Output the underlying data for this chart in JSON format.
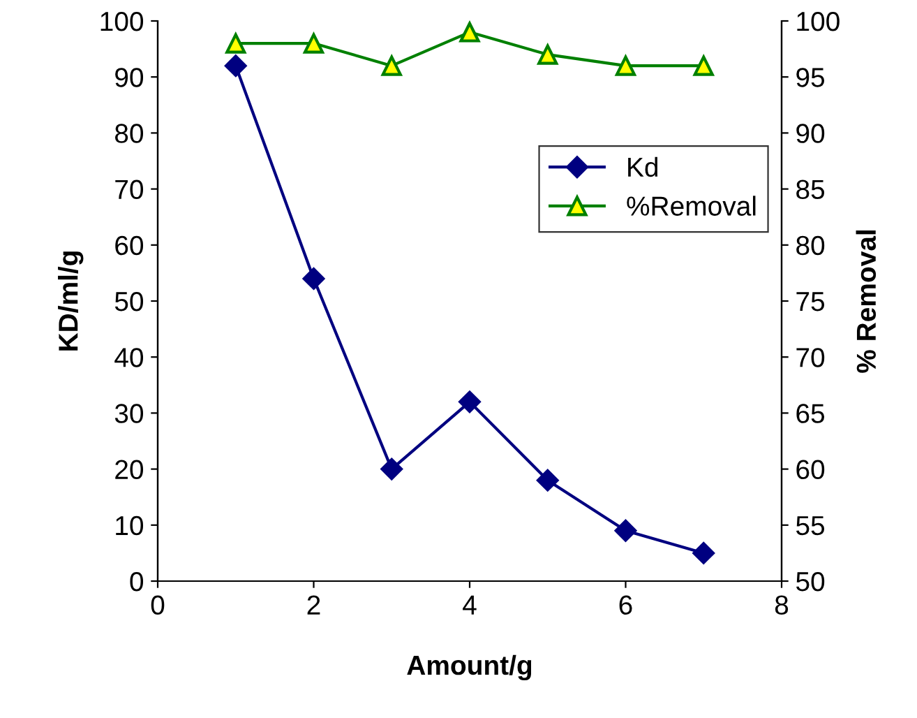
{
  "chart_data": {
    "type": "line",
    "xlabel": "Amount/g",
    "ylabel": "KD/ml/g",
    "y2label": "% Removal",
    "x": [
      1,
      2,
      3,
      4,
      5,
      6,
      7
    ],
    "series": [
      {
        "name": "Kd",
        "color": "#000080",
        "values": [
          92,
          54,
          20,
          32,
          18,
          9,
          5
        ],
        "marker": "diamond"
      },
      {
        "name": "%Removal",
        "color": "#008000",
        "values": [
          98,
          98,
          96,
          99,
          97,
          96,
          96
        ],
        "axis": "y2",
        "marker": "triangle"
      }
    ],
    "xlim": [
      0,
      8
    ],
    "xticks": [
      0,
      2,
      4,
      6,
      8
    ],
    "ylim": [
      0,
      100
    ],
    "yticks": [
      0,
      10,
      20,
      30,
      40,
      50,
      60,
      70,
      80,
      90,
      100
    ],
    "y2lim": [
      50,
      100
    ],
    "y2ticks": [
      50,
      55,
      60,
      65,
      70,
      75,
      80,
      85,
      90,
      95,
      100
    ],
    "grid": false,
    "legend": "right"
  }
}
